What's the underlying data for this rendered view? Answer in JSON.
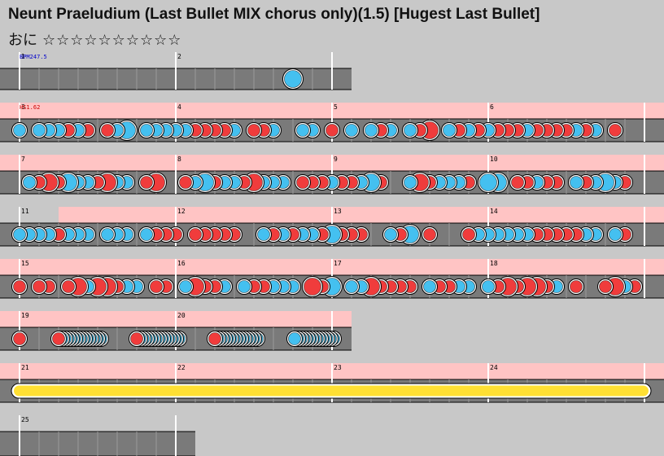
{
  "header": {
    "title": "Neunt Praeludium (Last Bullet MIX chorus only)(1.5) [Hugest Last Bullet]",
    "difficulty_label": "おに",
    "stars": "☆☆☆☆☆☆☆☆☆☆"
  },
  "colors": {
    "background": "#c8c8c8",
    "lane": "#7a7a7a",
    "gogo_band": "#ffc4c4",
    "don": "#f03c3c",
    "ka": "#44c0f0",
    "roll": "#ffe033",
    "bpm_text": "#0000cc",
    "hs_text": "#cc0000"
  },
  "rows": [
    {
      "markers": [
        {
          "measure": "1"
        },
        {
          "measure": "2"
        }
      ],
      "labels": [
        {
          "text": "BPM247.5",
          "kind": "bpm"
        }
      ]
    },
    {
      "markers": [
        {
          "measure": "3"
        },
        {
          "measure": "4"
        },
        {
          "measure": "5"
        },
        {
          "measure": "6"
        }
      ],
      "labels": [
        {
          "text": "HS1.62",
          "kind": "hs"
        }
      ]
    },
    {
      "markers": [
        {
          "measure": "7"
        },
        {
          "measure": "8"
        },
        {
          "measure": "9"
        },
        {
          "measure": "10"
        }
      ],
      "labels": []
    },
    {
      "markers": [
        {
          "measure": "11"
        },
        {
          "measure": "12"
        },
        {
          "measure": "13"
        },
        {
          "measure": "14"
        }
      ],
      "labels": []
    },
    {
      "markers": [
        {
          "measure": "15"
        },
        {
          "measure": "16"
        },
        {
          "measure": "17"
        },
        {
          "measure": "18"
        }
      ],
      "labels": []
    },
    {
      "markers": [
        {
          "measure": "19"
        },
        {
          "measure": "20"
        }
      ],
      "labels": []
    },
    {
      "markers": [
        {
          "measure": "21"
        },
        {
          "measure": "22"
        },
        {
          "measure": "23"
        },
        {
          "measure": "24"
        }
      ],
      "labels": []
    },
    {
      "markers": [
        {
          "measure": "25"
        }
      ],
      "labels": []
    }
  ]
}
